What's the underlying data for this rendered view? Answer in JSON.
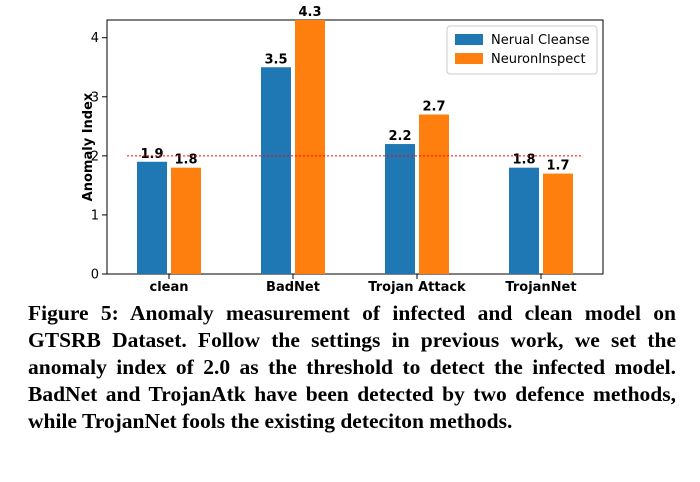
{
  "chart_data": {
    "type": "bar",
    "ylabel": "Anomaly Index",
    "categories": [
      "clean",
      "BadNet",
      "Trojan Attack",
      "TrojanNet"
    ],
    "series": [
      {
        "name": "Nerual Cleanse",
        "values": [
          1.9,
          3.5,
          2.2,
          1.8
        ],
        "color": "#1f77b4"
      },
      {
        "name": "NeuronInspect",
        "values": [
          1.8,
          4.3,
          2.7,
          1.7
        ],
        "color": "#ff7f0e"
      }
    ],
    "value_labels": [
      [
        "1.9",
        "3.5",
        "2.2",
        "1.8"
      ],
      [
        "1.8",
        "4.3",
        "2.7",
        "1.7"
      ]
    ],
    "ylim": [
      0,
      4.3
    ],
    "yticks": [
      "0",
      "1",
      "2",
      "3",
      "4"
    ],
    "threshold": {
      "value": 2.0,
      "color": "#ff0000",
      "style": "dotted"
    },
    "legend_position": "top-right",
    "grid": false
  },
  "caption": "Figure 5: Anomaly measurement of infected and clean model on GTSRB Dataset. Follow the settings in previous work, we set the anomaly index of 2.0 as the threshold to detect the infected model. BadNet and TrojanAtk have been detected by two defence methods, while TrojanNet fools the existing deteciton methods."
}
